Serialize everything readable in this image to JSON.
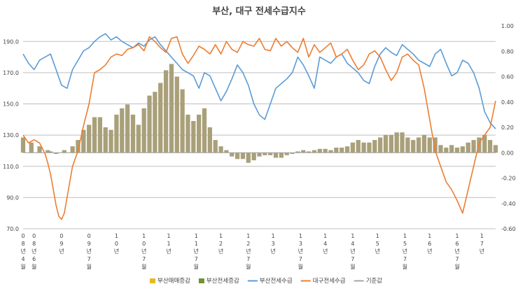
{
  "chart_data": {
    "type": "bar+line",
    "title": "부산, 대구 전세수급지수",
    "left_axis": {
      "ylim": [
        70,
        200
      ],
      "ticks": [
        "70.0",
        "90.0",
        "110.0",
        "130.0",
        "150.0",
        "170.0",
        "190.0"
      ],
      "tick_values": [
        70,
        90,
        110,
        130,
        150,
        170,
        190
      ]
    },
    "right_axis": {
      "ylim": [
        -0.6,
        1.0
      ],
      "ticks": [
        "-0.60",
        "-0.40",
        "-0.20",
        "0.00",
        "0.20",
        "0.40",
        "0.60",
        "0.80",
        "1.00"
      ],
      "tick_values": [
        -0.6,
        -0.4,
        -0.2,
        0.0,
        0.2,
        0.4,
        0.6,
        0.8,
        1.0
      ]
    },
    "x_range": [
      0,
      172
    ],
    "x_ticks": [
      {
        "pos": 0,
        "label": [
          "0",
          "8",
          "년",
          "4",
          "월"
        ]
      },
      {
        "pos": 4,
        "label": [
          "0",
          "8",
          "년",
          "6",
          "월"
        ]
      },
      {
        "pos": 14,
        "label": [
          "0",
          "9",
          "년"
        ]
      },
      {
        "pos": 24,
        "label": [
          "0",
          "9",
          "년",
          "7",
          "월"
        ]
      },
      {
        "pos": 34,
        "label": [
          "1",
          "0",
          "년"
        ]
      },
      {
        "pos": 44,
        "label": [
          "1",
          "0",
          "년",
          "7",
          "월"
        ]
      },
      {
        "pos": 53,
        "label": [
          "1",
          "1",
          "년"
        ]
      },
      {
        "pos": 63,
        "label": [
          "1",
          "1",
          "년",
          "7",
          "월"
        ]
      },
      {
        "pos": 72,
        "label": [
          "1",
          "2",
          "년"
        ]
      },
      {
        "pos": 82,
        "label": [
          "1",
          "2",
          "년",
          "7",
          "월"
        ]
      },
      {
        "pos": 91,
        "label": [
          "1",
          "3",
          "년"
        ]
      },
      {
        "pos": 101,
        "label": [
          "1",
          "3",
          "년",
          "7",
          "월"
        ]
      },
      {
        "pos": 110,
        "label": [
          "1",
          "4",
          "년"
        ]
      },
      {
        "pos": 120,
        "label": [
          "1",
          "4",
          "년",
          "7",
          "월"
        ]
      },
      {
        "pos": 129,
        "label": [
          "1",
          "5",
          "년"
        ]
      },
      {
        "pos": 139,
        "label": [
          "1",
          "5",
          "년",
          "7",
          "월"
        ]
      },
      {
        "pos": 148,
        "label": [
          "1",
          "6",
          "년"
        ]
      },
      {
        "pos": 158,
        "label": [
          "1",
          "6",
          "년",
          "7",
          "월"
        ]
      },
      {
        "pos": 167,
        "label": [
          "1",
          "7",
          "년"
        ]
      }
    ],
    "legend": [
      "부산매매증감",
      "부산전세증감",
      "부산전세수급",
      "대구전세수급",
      "기준값"
    ],
    "colors": {
      "busan_sale_change": "#e8b820",
      "busan_jeonse_change": "#70932e",
      "bar_fill": "#a9a07a",
      "busan_supply": "#5b9bd5",
      "daegu_supply": "#ed7d31",
      "baseline": "#a5a5a5",
      "grid": "#bfbfbf"
    },
    "series": [
      {
        "name": "부산전세증감",
        "type": "bar",
        "axis": "right",
        "x": [
          0,
          3,
          6,
          9,
          10,
          12,
          15,
          18,
          20,
          22,
          24,
          26,
          28,
          30,
          32,
          34,
          36,
          38,
          40,
          42,
          44,
          46,
          48,
          50,
          52,
          54,
          56,
          58,
          60,
          62,
          64,
          66,
          68,
          70,
          72,
          74,
          76,
          78,
          80,
          82,
          84,
          86,
          88,
          90,
          92,
          94,
          96,
          98,
          100,
          102,
          104,
          106,
          108,
          110,
          112,
          114,
          116,
          118,
          120,
          122,
          124,
          126,
          128,
          130,
          132,
          134,
          136,
          138,
          140,
          142,
          144,
          146,
          148,
          150,
          152,
          154,
          156,
          158,
          160,
          162,
          164,
          166,
          168,
          170,
          172
        ],
        "values": [
          0.12,
          0.08,
          0.05,
          0.02,
          0.01,
          -0.01,
          0.02,
          0.05,
          0.1,
          0.18,
          0.22,
          0.28,
          0.28,
          0.2,
          0.18,
          0.3,
          0.35,
          0.38,
          0.3,
          0.22,
          0.35,
          0.45,
          0.48,
          0.55,
          0.65,
          0.7,
          0.6,
          0.5,
          0.3,
          0.25,
          0.3,
          0.35,
          0.2,
          0.1,
          0.05,
          0.02,
          -0.03,
          -0.05,
          -0.05,
          -0.08,
          -0.06,
          -0.03,
          -0.02,
          -0.02,
          -0.04,
          -0.04,
          -0.02,
          -0.01,
          0.01,
          0.02,
          0.01,
          0.02,
          0.03,
          0.03,
          0.02,
          0.04,
          0.04,
          0.05,
          0.08,
          0.1,
          0.08,
          0.08,
          0.1,
          0.12,
          0.14,
          0.14,
          0.16,
          0.16,
          0.12,
          0.1,
          0.12,
          0.14,
          0.12,
          0.12,
          0.06,
          0.04,
          0.06,
          0.04,
          0.05,
          0.08,
          0.1,
          0.12,
          0.14,
          0.1,
          0.06
        ]
      },
      {
        "name": "부산전세수급",
        "type": "line",
        "axis": "left",
        "x": [
          0,
          2,
          4,
          6,
          8,
          10,
          12,
          14,
          16,
          18,
          20,
          22,
          24,
          26,
          28,
          30,
          32,
          34,
          36,
          38,
          40,
          42,
          44,
          46,
          48,
          50,
          52,
          54,
          56,
          58,
          60,
          62,
          64,
          66,
          68,
          70,
          72,
          74,
          76,
          78,
          80,
          82,
          84,
          86,
          88,
          90,
          92,
          94,
          96,
          98,
          100,
          102,
          104,
          106,
          108,
          110,
          112,
          114,
          116,
          118,
          120,
          122,
          124,
          126,
          128,
          130,
          132,
          134,
          136,
          138,
          140,
          142,
          144,
          146,
          148,
          150,
          152,
          154,
          156,
          158,
          160,
          162,
          164,
          166,
          168,
          170,
          172
        ],
        "values": [
          182,
          176,
          172,
          178,
          180,
          182,
          172,
          162,
          160,
          172,
          178,
          184,
          186,
          190,
          193,
          195,
          191,
          193,
          190,
          188,
          186,
          189,
          187,
          191,
          193,
          188,
          184,
          180,
          176,
          172,
          170,
          168,
          160,
          170,
          168,
          160,
          152,
          158,
          166,
          175,
          170,
          162,
          150,
          143,
          140,
          150,
          160,
          163,
          166,
          170,
          180,
          175,
          168,
          160,
          180,
          178,
          176,
          180,
          182,
          176,
          173,
          170,
          165,
          163,
          174,
          182,
          186,
          183,
          181,
          188,
          185,
          182,
          178,
          176,
          174,
          182,
          185,
          176,
          168,
          170,
          178,
          176,
          170,
          160,
          145,
          138,
          134
        ]
      },
      {
        "name": "대구전세수급",
        "type": "line",
        "axis": "left",
        "x": [
          0,
          2,
          4,
          6,
          8,
          9,
          10,
          11,
          12,
          13,
          14,
          15,
          16,
          18,
          20,
          22,
          24,
          26,
          28,
          30,
          32,
          34,
          36,
          38,
          40,
          42,
          44,
          46,
          48,
          50,
          52,
          54,
          56,
          58,
          60,
          62,
          64,
          66,
          68,
          70,
          72,
          74,
          76,
          78,
          80,
          82,
          84,
          86,
          88,
          90,
          92,
          94,
          96,
          98,
          100,
          102,
          104,
          106,
          108,
          110,
          112,
          114,
          116,
          118,
          120,
          122,
          124,
          126,
          128,
          130,
          132,
          134,
          136,
          138,
          140,
          142,
          144,
          146,
          148,
          150,
          152,
          154,
          156,
          158,
          160,
          162,
          164,
          166,
          168,
          170,
          172
        ],
        "values": [
          130,
          125,
          127,
          125,
          118,
          112,
          105,
          95,
          85,
          78,
          76,
          80,
          90,
          110,
          120,
          136,
          150,
          170,
          172,
          175,
          180,
          182,
          181,
          185,
          186,
          188,
          184,
          193,
          190,
          186,
          183,
          192,
          193,
          182,
          176,
          181,
          187,
          185,
          182,
          188,
          182,
          190,
          185,
          183,
          190,
          188,
          187,
          192,
          185,
          184,
          192,
          187,
          190,
          186,
          183,
          192,
          180,
          188,
          183,
          186,
          189,
          180,
          182,
          185,
          178,
          172,
          175,
          182,
          184,
          180,
          172,
          165,
          170,
          180,
          182,
          178,
          175,
          160,
          140,
          120,
          110,
          100,
          95,
          88,
          80,
          95,
          110,
          125,
          130,
          135,
          152
        ]
      },
      {
        "name": "기준값",
        "type": "line",
        "axis": "right",
        "x": [
          0,
          172
        ],
        "values": [
          0,
          0
        ]
      }
    ]
  }
}
